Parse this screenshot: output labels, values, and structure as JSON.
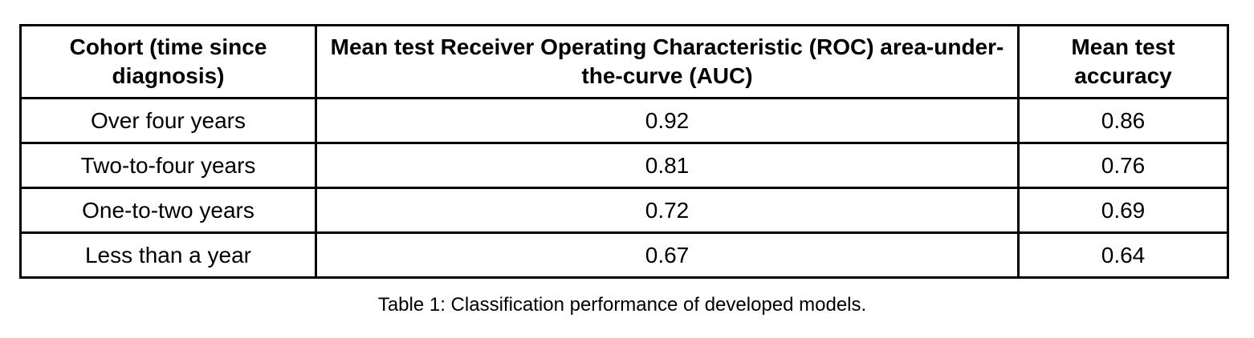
{
  "table": {
    "headers": [
      "Cohort (time since diagnosis)",
      "Mean test Receiver Operating Characteristic (ROC) area-under-the-curve (AUC)",
      "Mean test accuracy"
    ],
    "rows": [
      [
        "Over four years",
        "0.92",
        "0.86"
      ],
      [
        "Two-to-four years",
        "0.81",
        "0.76"
      ],
      [
        "One-to-two years",
        "0.72",
        "0.69"
      ],
      [
        "Less than a year",
        "0.67",
        "0.64"
      ]
    ]
  },
  "caption": "Table 1: Classification performance of developed models."
}
